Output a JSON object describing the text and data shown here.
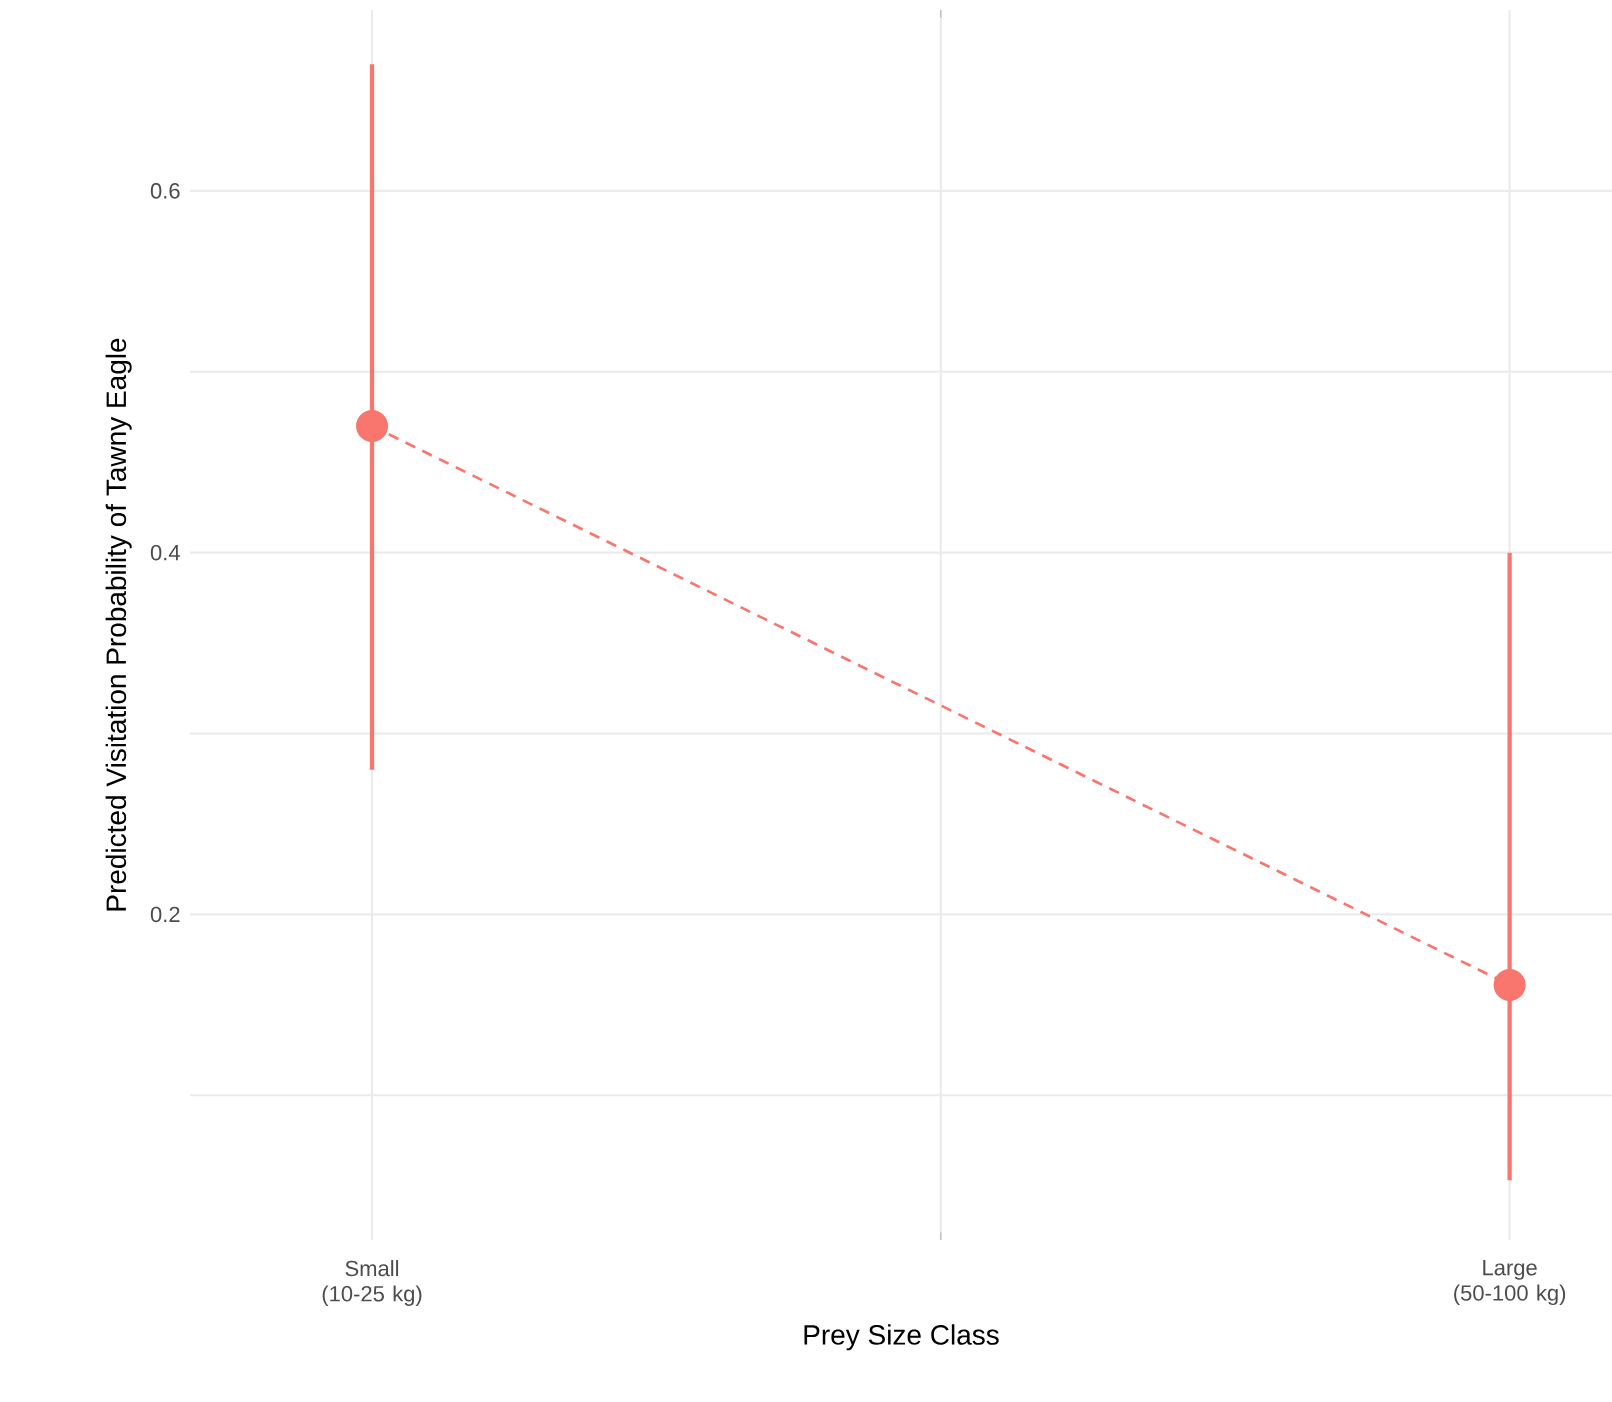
{
  "chart_data": {
    "type": "line",
    "xlabel": "Prey Size Class",
    "ylabel": "Predicted Visitation Probability of Tawny Eagle",
    "categories": [
      "Small (10-25 kg)",
      "Large (50-100 kg)"
    ],
    "series": [
      {
        "color": "#f8766d",
        "values": [
          0.47,
          0.161
        ],
        "errors": [
          [
            0.28,
            0.67
          ],
          [
            0.053,
            0.4
          ]
        ]
      }
    ],
    "ylim": [
      0.02,
      0.7
    ],
    "yticks": [
      {
        "value": 0.1,
        "label": null
      },
      0.2,
      {
        "value": 0.3,
        "label": null
      },
      0.4,
      {
        "value": 0.5,
        "label": null
      },
      0.6
    ],
    "grid": true,
    "marker": "circle",
    "line_style": "dashed"
  }
}
